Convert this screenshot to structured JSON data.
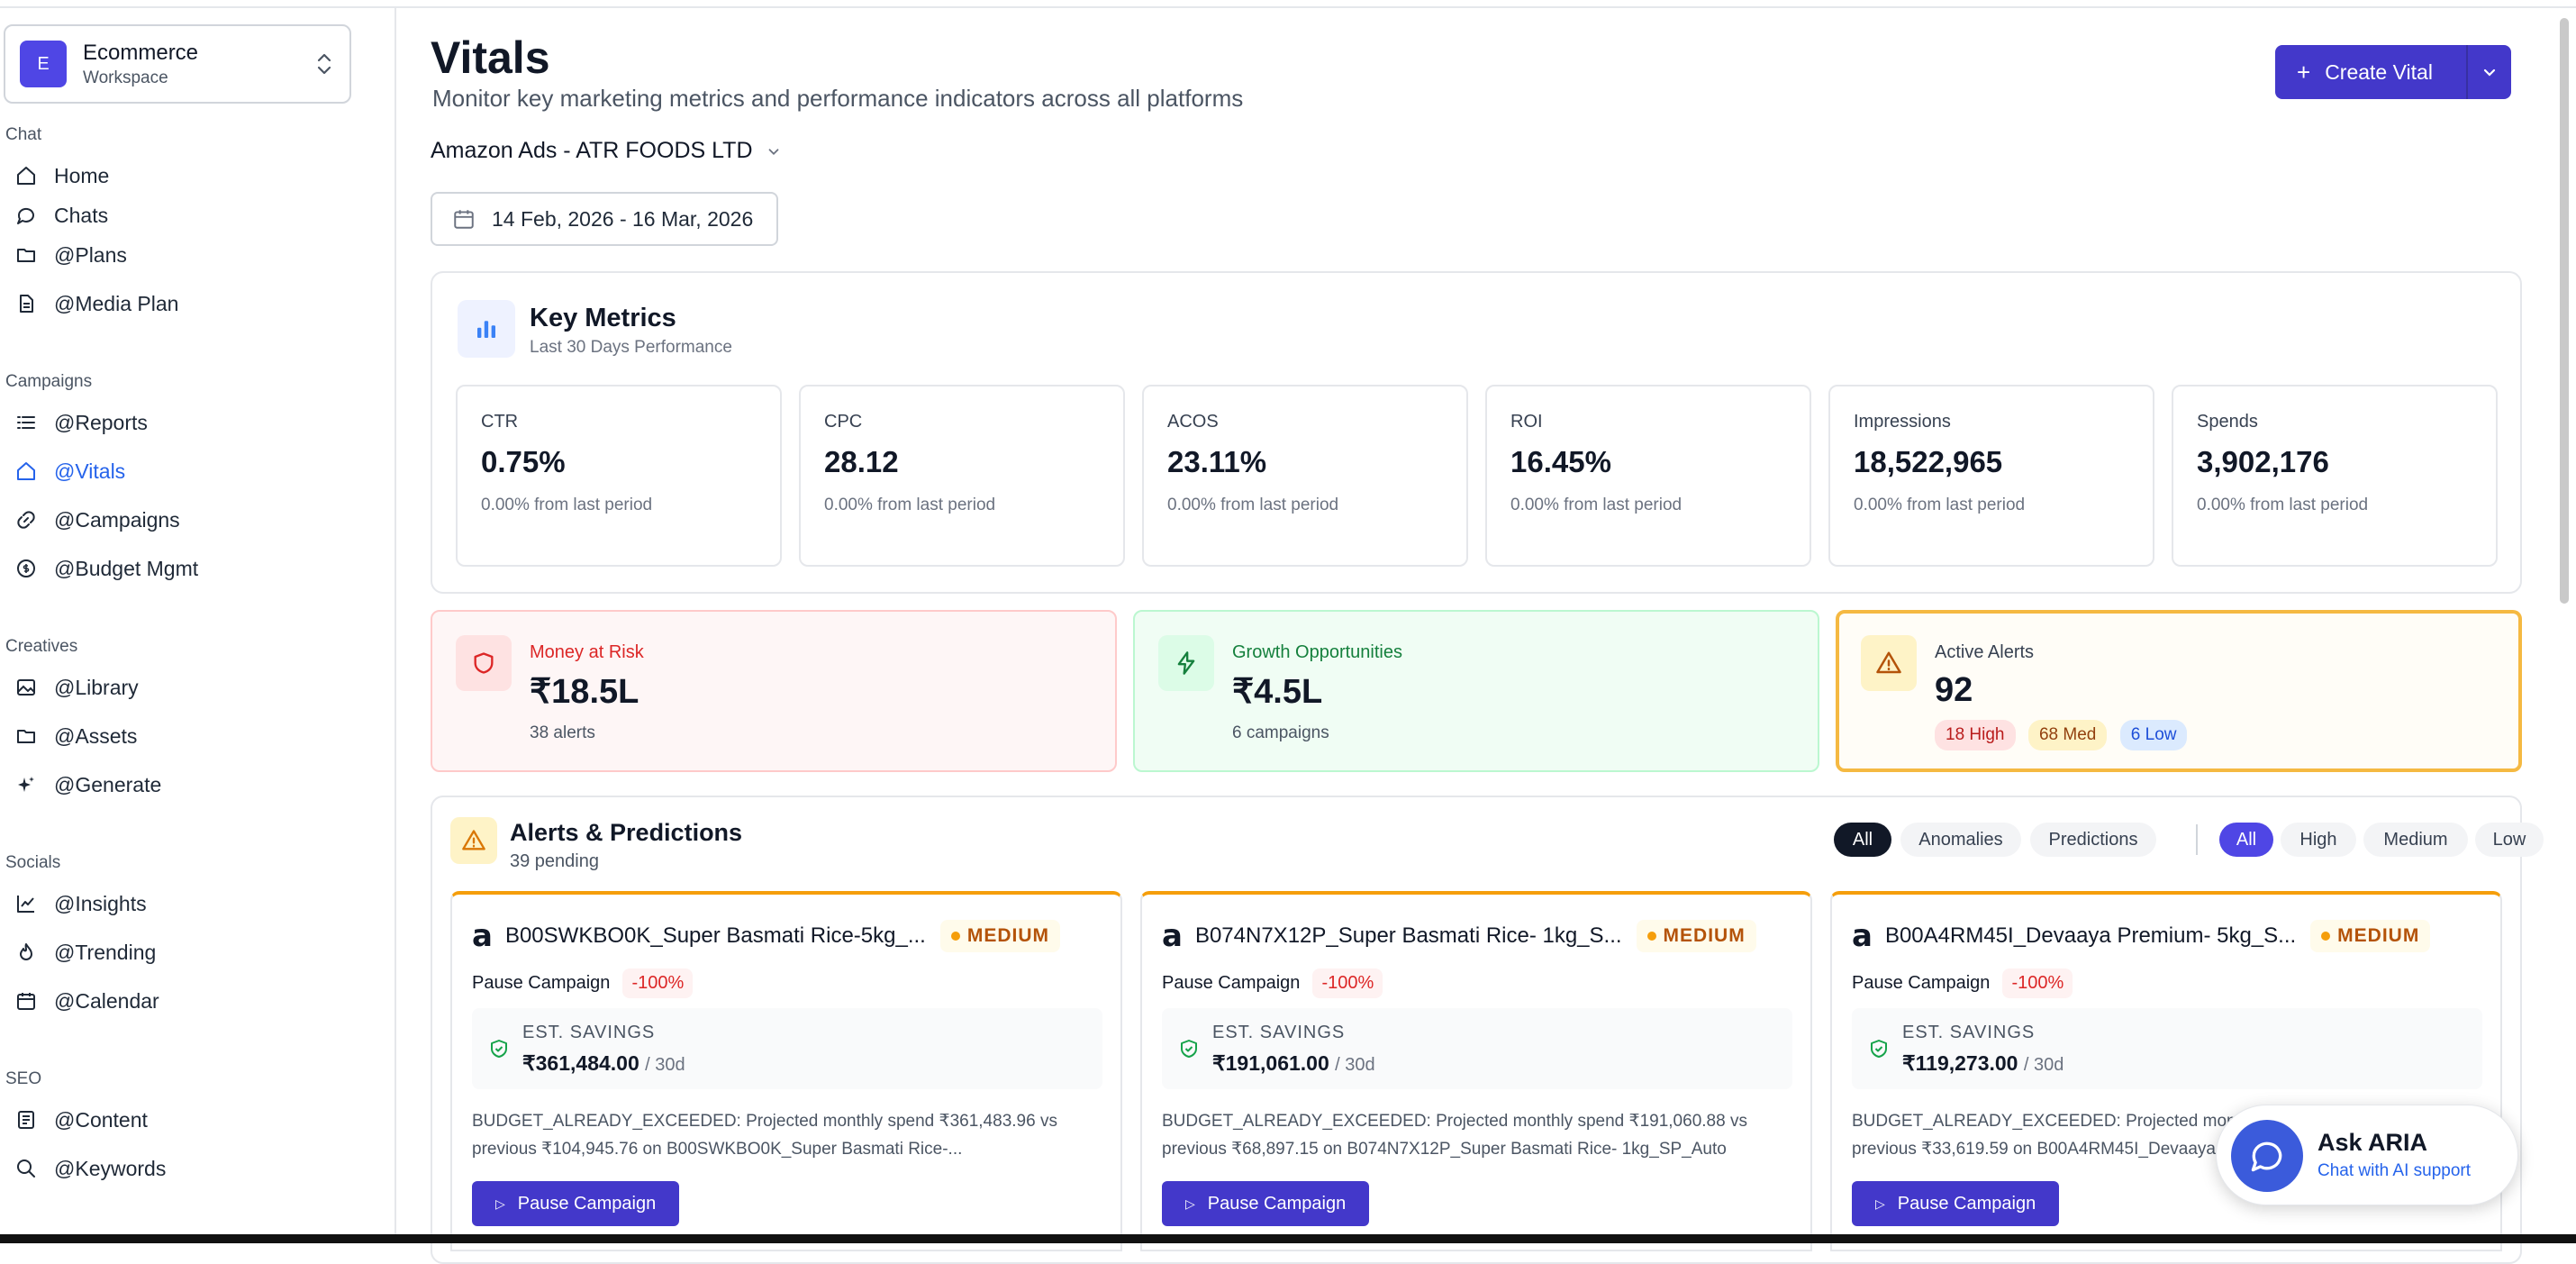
{
  "workspace": {
    "avatar": "E",
    "name": "Ecommerce",
    "sub": "Workspace"
  },
  "sidebar": {
    "sections": [
      {
        "label": "Chat",
        "items": [
          "Home",
          "Chats",
          "@Plans",
          "@Media Plan"
        ]
      },
      {
        "label": "Campaigns",
        "items": [
          "@Reports",
          "@Vitals",
          "@Campaigns",
          "@Budget Mgmt"
        ]
      },
      {
        "label": "Creatives",
        "items": [
          "@Library",
          "@Assets",
          "@Generate"
        ]
      },
      {
        "label": "Socials",
        "items": [
          "@Insights",
          "@Trending",
          "@Calendar"
        ]
      },
      {
        "label": "SEO",
        "items": [
          "@Content",
          "@Keywords"
        ]
      }
    ]
  },
  "header": {
    "title": "Vitals",
    "subtitle": "Monitor key marketing metrics and performance indicators across all platforms",
    "create_label": "Create Vital"
  },
  "account": {
    "label": "Amazon Ads - ATR FOODS LTD"
  },
  "date_range": "14 Feb, 2026 - 16 Mar, 2026",
  "key_metrics": {
    "title": "Key Metrics",
    "sub": "Last 30 Days Performance",
    "cards": [
      {
        "label": "CTR",
        "value": "0.75%",
        "delta": "0.00% from last period"
      },
      {
        "label": "CPC",
        "value": "28.12",
        "delta": "0.00% from last period"
      },
      {
        "label": "ACOS",
        "value": "23.11%",
        "delta": "0.00% from last period"
      },
      {
        "label": "ROI",
        "value": "16.45%",
        "delta": "0.00% from last period"
      },
      {
        "label": "Impressions",
        "value": "18,522,965",
        "delta": "0.00% from last period"
      },
      {
        "label": "Spends",
        "value": "3,902,176",
        "delta": "0.00% from last period"
      }
    ]
  },
  "summary": {
    "risk": {
      "label": "Money at Risk",
      "value": "₹18.5L",
      "note": "38 alerts"
    },
    "growth": {
      "label": "Growth Opportunities",
      "value": "₹4.5L",
      "note": "6 campaigns"
    },
    "alerts": {
      "label": "Active Alerts",
      "value": "92",
      "high": "18 High",
      "med": "68 Med",
      "low": "6 Low"
    }
  },
  "alerts_panel": {
    "title": "Alerts & Predictions",
    "sub": "39 pending",
    "type_filters": [
      "All",
      "Anomalies",
      "Predictions"
    ],
    "severity_filters": [
      "All",
      "High",
      "Medium",
      "Low"
    ],
    "cards": [
      {
        "name": "B00SWKBO0K_Super Basmati Rice-5kg_...",
        "severity": "MEDIUM",
        "action": "Pause Campaign",
        "change": "-100%",
        "save_label": "EST. SAVINGS",
        "amount": "₹361,484.00",
        "period": "/ 30d",
        "desc": "BUDGET_ALREADY_EXCEEDED: Projected monthly spend ₹361,483.96 vs previous ₹104,945.76 on B00SWKBO0K_Super Basmati Rice-...",
        "button": "Pause Campaign"
      },
      {
        "name": "B074N7X12P_Super Basmati Rice- 1kg_S...",
        "severity": "MEDIUM",
        "action": "Pause Campaign",
        "change": "-100%",
        "save_label": "EST. SAVINGS",
        "amount": "₹191,061.00",
        "period": "/ 30d",
        "desc": "BUDGET_ALREADY_EXCEEDED: Projected monthly spend ₹191,060.88 vs previous ₹68,897.15 on B074N7X12P_Super Basmati Rice- 1kg_SP_Auto",
        "button": "Pause Campaign"
      },
      {
        "name": "B00A4RM45I_Devaaya Premium- 5kg_S...",
        "severity": "MEDIUM",
        "action": "Pause Campaign",
        "change": "-100%",
        "save_label": "EST. SAVINGS",
        "amount": "₹119,273.00",
        "period": "/ 30d",
        "desc": "BUDGET_ALREADY_EXCEEDED: Projected monthly spend ₹119,273.14 vs previous ₹33,619.59 on B00A4RM45I_Devaaya",
        "button": "Pause Campaign"
      }
    ]
  },
  "aria": {
    "title": "Ask ARIA",
    "sub": "Chat with AI support"
  },
  "colors": {
    "accent": "#4338ca",
    "risk": "#dc2626",
    "growth": "#15803d",
    "alert": "#f59e0b"
  }
}
